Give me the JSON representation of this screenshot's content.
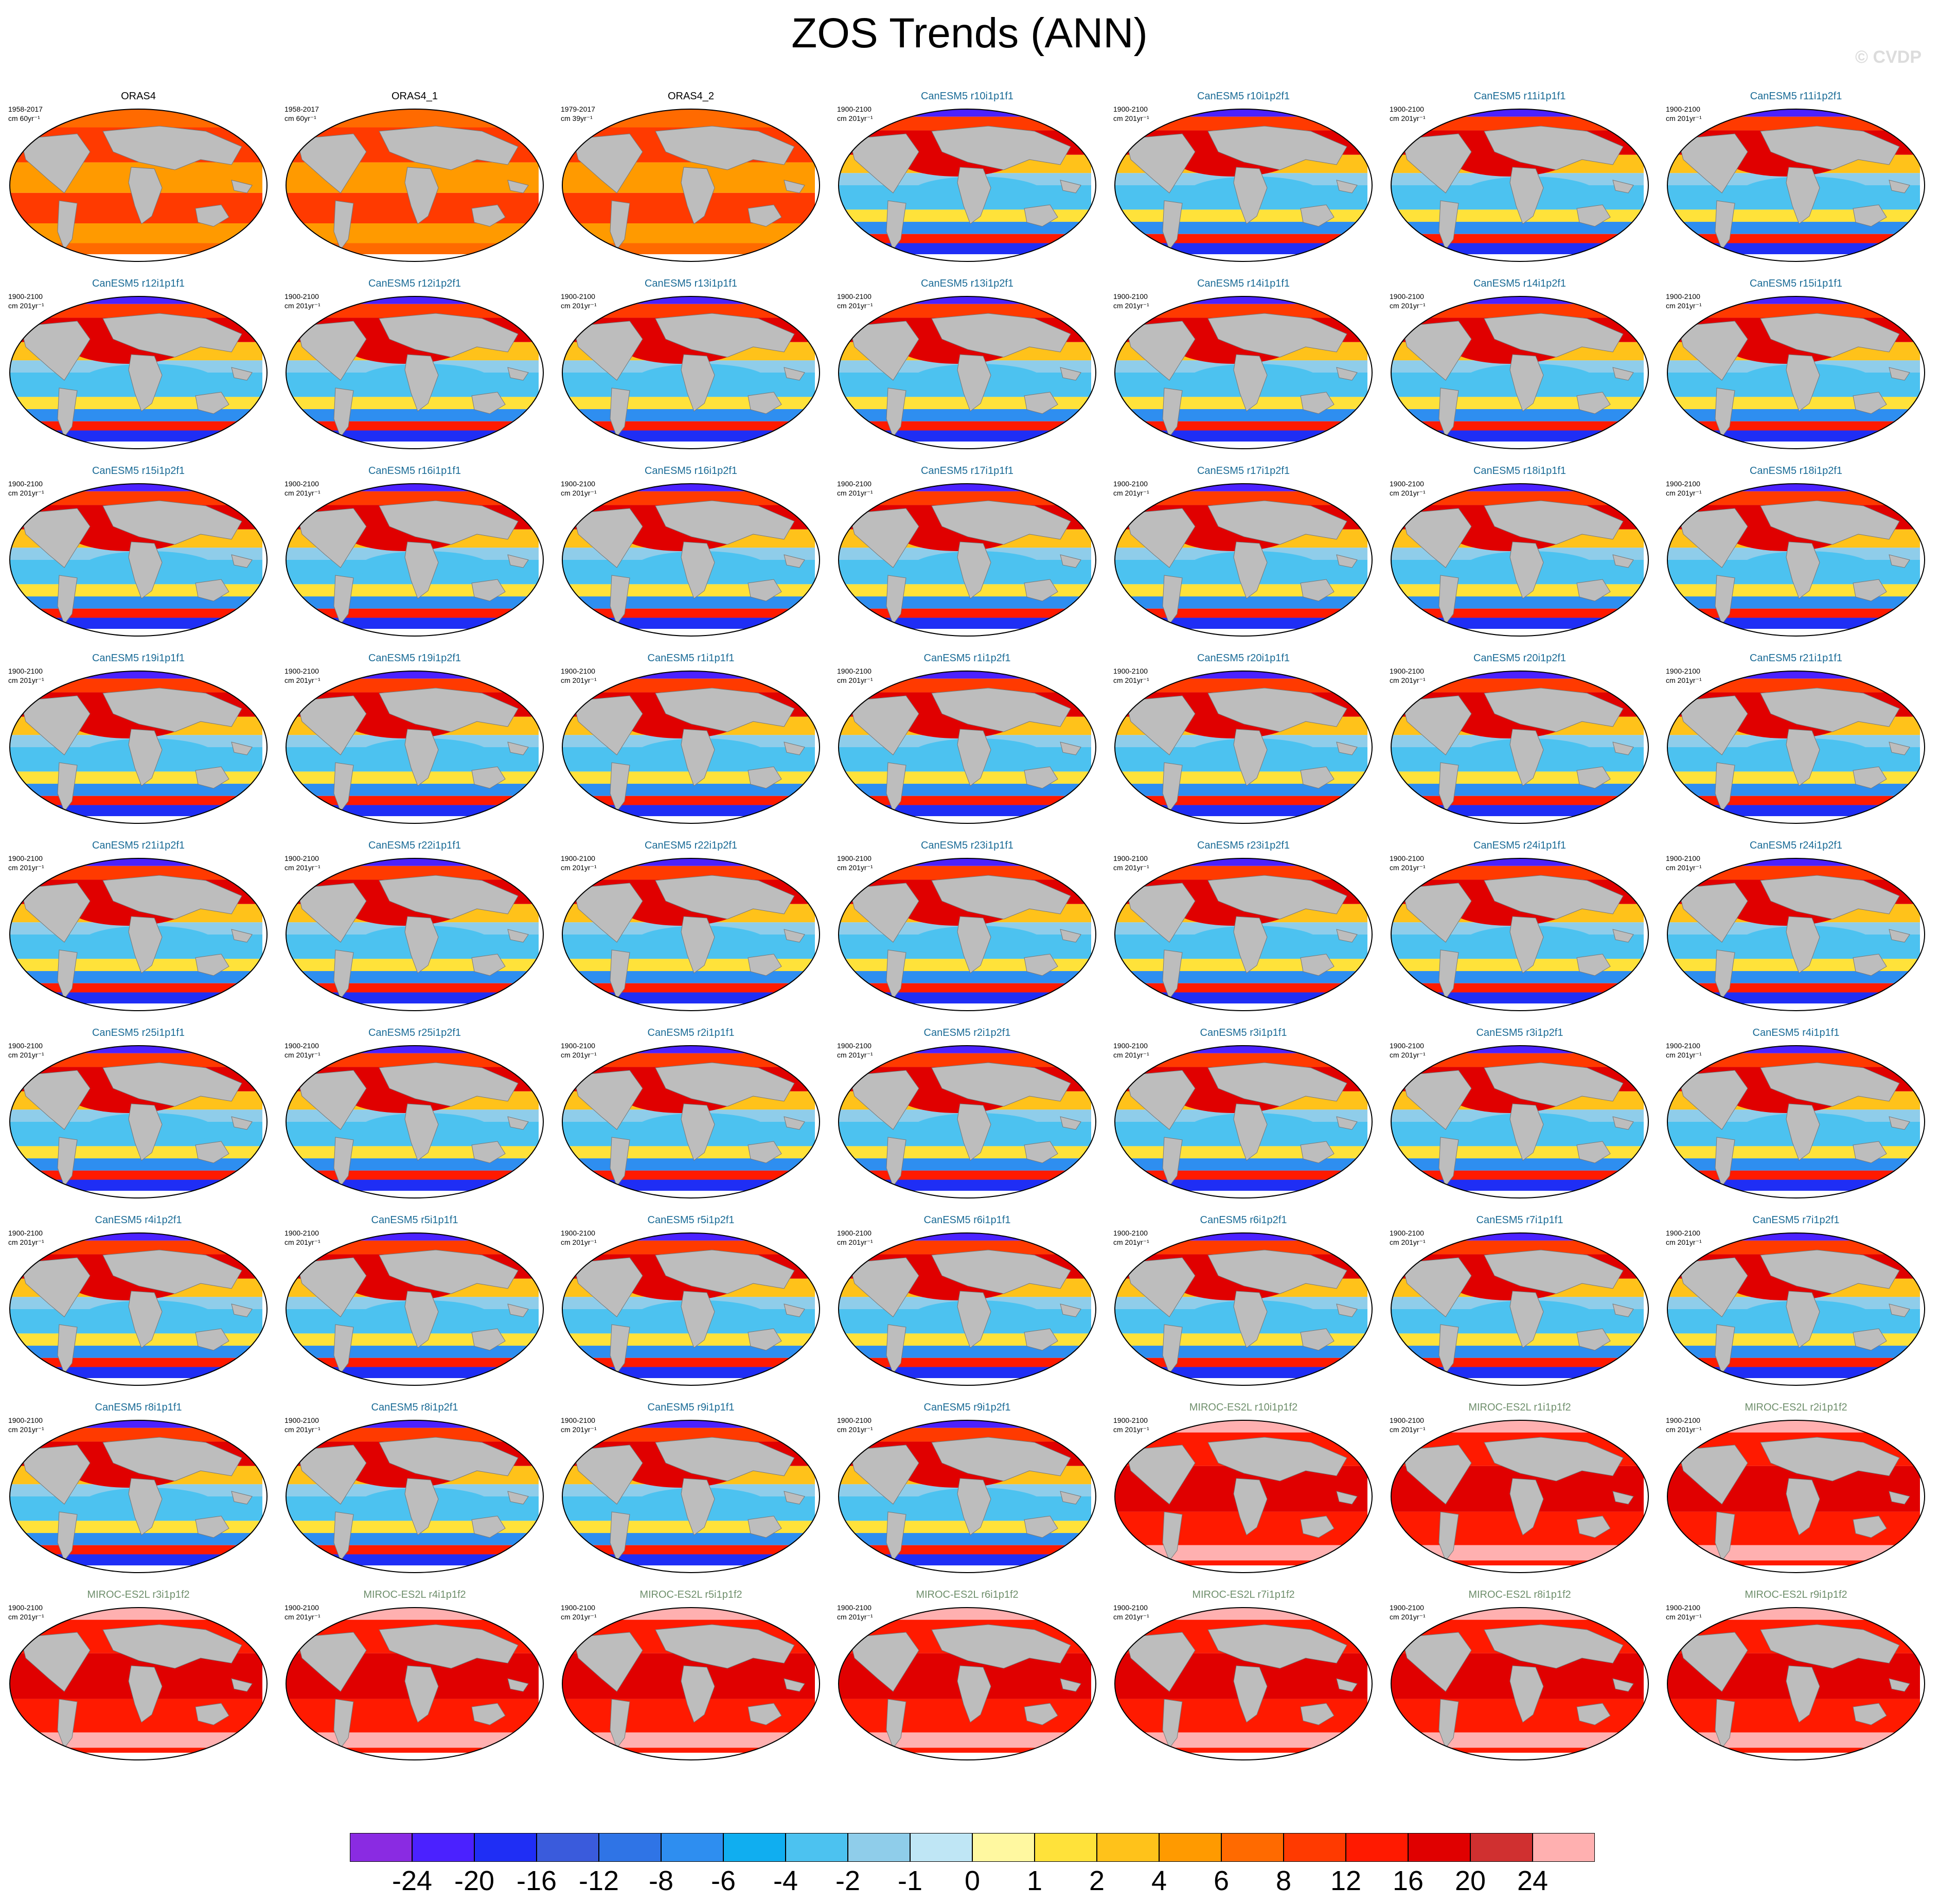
{
  "title": "ZOS Trends (ANN)",
  "copyright": "© CVDP",
  "colors": {
    "land": "#bdbdbd",
    "obs_title": "#000000",
    "canesm_title": "#1a6b96",
    "miroc_title": "#6f8f6c",
    "colorbar": [
      "#8a2be2",
      "#4b21ff",
      "#1f2ef5",
      "#3a5bdc",
      "#2f74e6",
      "#2e8ef0",
      "#10aef0",
      "#4cc2f0",
      "#8fcdea",
      "#bfe6f5",
      "#fff8a0",
      "#ffe23a",
      "#ffc21a",
      "#ff9a00",
      "#ff6a00",
      "#ff3a00",
      "#ff1a00",
      "#e00000",
      "#d03030",
      "#ffb0b0"
    ]
  },
  "colorbar": {
    "labels": [
      "-24",
      "-20",
      "-16",
      "-12",
      "-8",
      "-6",
      "-4",
      "-2",
      "-1",
      "0",
      "1",
      "2",
      "4",
      "6",
      "8",
      "12",
      "16",
      "20",
      "24"
    ]
  },
  "panels": [
    {
      "title": "ORAS4",
      "years": "1958-2017",
      "units": "cm 60yr⁻¹",
      "group": "obs"
    },
    {
      "title": "ORAS4_1",
      "years": "1958-2017",
      "units": "cm 60yr⁻¹",
      "group": "obs"
    },
    {
      "title": "ORAS4_2",
      "years": "1979-2017",
      "units": "cm 39yr⁻¹",
      "group": "obs"
    },
    {
      "title": "CanESM5 r10i1p1f1",
      "years": "1900-2100",
      "units": "cm 201yr⁻¹",
      "group": "canesm"
    },
    {
      "title": "CanESM5 r10i1p2f1",
      "years": "1900-2100",
      "units": "cm 201yr⁻¹",
      "group": "canesm"
    },
    {
      "title": "CanESM5 r11i1p1f1",
      "years": "1900-2100",
      "units": "cm 201yr⁻¹",
      "group": "canesm"
    },
    {
      "title": "CanESM5 r11i1p2f1",
      "years": "1900-2100",
      "units": "cm 201yr⁻¹",
      "group": "canesm"
    },
    {
      "title": "CanESM5 r12i1p1f1",
      "years": "1900-2100",
      "units": "cm 201yr⁻¹",
      "group": "canesm"
    },
    {
      "title": "CanESM5 r12i1p2f1",
      "years": "1900-2100",
      "units": "cm 201yr⁻¹",
      "group": "canesm"
    },
    {
      "title": "CanESM5 r13i1p1f1",
      "years": "1900-2100",
      "units": "cm 201yr⁻¹",
      "group": "canesm"
    },
    {
      "title": "CanESM5 r13i1p2f1",
      "years": "1900-2100",
      "units": "cm 201yr⁻¹",
      "group": "canesm"
    },
    {
      "title": "CanESM5 r14i1p1f1",
      "years": "1900-2100",
      "units": "cm 201yr⁻¹",
      "group": "canesm"
    },
    {
      "title": "CanESM5 r14i1p2f1",
      "years": "1900-2100",
      "units": "cm 201yr⁻¹",
      "group": "canesm"
    },
    {
      "title": "CanESM5 r15i1p1f1",
      "years": "1900-2100",
      "units": "cm 201yr⁻¹",
      "group": "canesm"
    },
    {
      "title": "CanESM5 r15i1p2f1",
      "years": "1900-2100",
      "units": "cm 201yr⁻¹",
      "group": "canesm"
    },
    {
      "title": "CanESM5 r16i1p1f1",
      "years": "1900-2100",
      "units": "cm 201yr⁻¹",
      "group": "canesm"
    },
    {
      "title": "CanESM5 r16i1p2f1",
      "years": "1900-2100",
      "units": "cm 201yr⁻¹",
      "group": "canesm"
    },
    {
      "title": "CanESM5 r17i1p1f1",
      "years": "1900-2100",
      "units": "cm 201yr⁻¹",
      "group": "canesm"
    },
    {
      "title": "CanESM5 r17i1p2f1",
      "years": "1900-2100",
      "units": "cm 201yr⁻¹",
      "group": "canesm"
    },
    {
      "title": "CanESM5 r18i1p1f1",
      "years": "1900-2100",
      "units": "cm 201yr⁻¹",
      "group": "canesm"
    },
    {
      "title": "CanESM5 r18i1p2f1",
      "years": "1900-2100",
      "units": "cm 201yr⁻¹",
      "group": "canesm"
    },
    {
      "title": "CanESM5 r19i1p1f1",
      "years": "1900-2100",
      "units": "cm 201yr⁻¹",
      "group": "canesm"
    },
    {
      "title": "CanESM5 r19i1p2f1",
      "years": "1900-2100",
      "units": "cm 201yr⁻¹",
      "group": "canesm"
    },
    {
      "title": "CanESM5 r1i1p1f1",
      "years": "1900-2100",
      "units": "cm 201yr⁻¹",
      "group": "canesm"
    },
    {
      "title": "CanESM5 r1i1p2f1",
      "years": "1900-2100",
      "units": "cm 201yr⁻¹",
      "group": "canesm"
    },
    {
      "title": "CanESM5 r20i1p1f1",
      "years": "1900-2100",
      "units": "cm 201yr⁻¹",
      "group": "canesm"
    },
    {
      "title": "CanESM5 r20i1p2f1",
      "years": "1900-2100",
      "units": "cm 201yr⁻¹",
      "group": "canesm"
    },
    {
      "title": "CanESM5 r21i1p1f1",
      "years": "1900-2100",
      "units": "cm 201yr⁻¹",
      "group": "canesm"
    },
    {
      "title": "CanESM5 r21i1p2f1",
      "years": "1900-2100",
      "units": "cm 201yr⁻¹",
      "group": "canesm"
    },
    {
      "title": "CanESM5 r22i1p1f1",
      "years": "1900-2100",
      "units": "cm 201yr⁻¹",
      "group": "canesm"
    },
    {
      "title": "CanESM5 r22i1p2f1",
      "years": "1900-2100",
      "units": "cm 201yr⁻¹",
      "group": "canesm"
    },
    {
      "title": "CanESM5 r23i1p1f1",
      "years": "1900-2100",
      "units": "cm 201yr⁻¹",
      "group": "canesm"
    },
    {
      "title": "CanESM5 r23i1p2f1",
      "years": "1900-2100",
      "units": "cm 201yr⁻¹",
      "group": "canesm"
    },
    {
      "title": "CanESM5 r24i1p1f1",
      "years": "1900-2100",
      "units": "cm 201yr⁻¹",
      "group": "canesm"
    },
    {
      "title": "CanESM5 r24i1p2f1",
      "years": "1900-2100",
      "units": "cm 201yr⁻¹",
      "group": "canesm"
    },
    {
      "title": "CanESM5 r25i1p1f1",
      "years": "1900-2100",
      "units": "cm 201yr⁻¹",
      "group": "canesm"
    },
    {
      "title": "CanESM5 r25i1p2f1",
      "years": "1900-2100",
      "units": "cm 201yr⁻¹",
      "group": "canesm"
    },
    {
      "title": "CanESM5 r2i1p1f1",
      "years": "1900-2100",
      "units": "cm 201yr⁻¹",
      "group": "canesm"
    },
    {
      "title": "CanESM5 r2i1p2f1",
      "years": "1900-2100",
      "units": "cm 201yr⁻¹",
      "group": "canesm"
    },
    {
      "title": "CanESM5 r3i1p1f1",
      "years": "1900-2100",
      "units": "cm 201yr⁻¹",
      "group": "canesm"
    },
    {
      "title": "CanESM5 r3i1p2f1",
      "years": "1900-2100",
      "units": "cm 201yr⁻¹",
      "group": "canesm"
    },
    {
      "title": "CanESM5 r4i1p1f1",
      "years": "1900-2100",
      "units": "cm 201yr⁻¹",
      "group": "canesm"
    },
    {
      "title": "CanESM5 r4i1p2f1",
      "years": "1900-2100",
      "units": "cm 201yr⁻¹",
      "group": "canesm"
    },
    {
      "title": "CanESM5 r5i1p1f1",
      "years": "1900-2100",
      "units": "cm 201yr⁻¹",
      "group": "canesm"
    },
    {
      "title": "CanESM5 r5i1p2f1",
      "years": "1900-2100",
      "units": "cm 201yr⁻¹",
      "group": "canesm"
    },
    {
      "title": "CanESM5 r6i1p1f1",
      "years": "1900-2100",
      "units": "cm 201yr⁻¹",
      "group": "canesm"
    },
    {
      "title": "CanESM5 r6i1p2f1",
      "years": "1900-2100",
      "units": "cm 201yr⁻¹",
      "group": "canesm"
    },
    {
      "title": "CanESM5 r7i1p1f1",
      "years": "1900-2100",
      "units": "cm 201yr⁻¹",
      "group": "canesm"
    },
    {
      "title": "CanESM5 r7i1p2f1",
      "years": "1900-2100",
      "units": "cm 201yr⁻¹",
      "group": "canesm"
    },
    {
      "title": "CanESM5 r8i1p1f1",
      "years": "1900-2100",
      "units": "cm 201yr⁻¹",
      "group": "canesm"
    },
    {
      "title": "CanESM5 r8i1p2f1",
      "years": "1900-2100",
      "units": "cm 201yr⁻¹",
      "group": "canesm"
    },
    {
      "title": "CanESM5 r9i1p1f1",
      "years": "1900-2100",
      "units": "cm 201yr⁻¹",
      "group": "canesm"
    },
    {
      "title": "CanESM5 r9i1p2f1",
      "years": "1900-2100",
      "units": "cm 201yr⁻¹",
      "group": "canesm"
    },
    {
      "title": "MIROC-ES2L r10i1p1f2",
      "years": "1900-2100",
      "units": "cm 201yr⁻¹",
      "group": "miroc"
    },
    {
      "title": "MIROC-ES2L r1i1p1f2",
      "years": "1900-2100",
      "units": "cm 201yr⁻¹",
      "group": "miroc"
    },
    {
      "title": "MIROC-ES2L r2i1p1f2",
      "years": "1900-2100",
      "units": "cm 201yr⁻¹",
      "group": "miroc"
    },
    {
      "title": "MIROC-ES2L r3i1p1f2",
      "years": "1900-2100",
      "units": "cm 201yr⁻¹",
      "group": "miroc"
    },
    {
      "title": "MIROC-ES2L r4i1p1f2",
      "years": "1900-2100",
      "units": "cm 201yr⁻¹",
      "group": "miroc"
    },
    {
      "title": "MIROC-ES2L r5i1p1f2",
      "years": "1900-2100",
      "units": "cm 201yr⁻¹",
      "group": "miroc"
    },
    {
      "title": "MIROC-ES2L r6i1p1f2",
      "years": "1900-2100",
      "units": "cm 201yr⁻¹",
      "group": "miroc"
    },
    {
      "title": "MIROC-ES2L r7i1p1f2",
      "years": "1900-2100",
      "units": "cm 201yr⁻¹",
      "group": "miroc"
    },
    {
      "title": "MIROC-ES2L r8i1p1f2",
      "years": "1900-2100",
      "units": "cm 201yr⁻¹",
      "group": "miroc"
    },
    {
      "title": "MIROC-ES2L r9i1p1f2",
      "years": "1900-2100",
      "units": "cm 201yr⁻¹",
      "group": "miroc"
    }
  ]
}
